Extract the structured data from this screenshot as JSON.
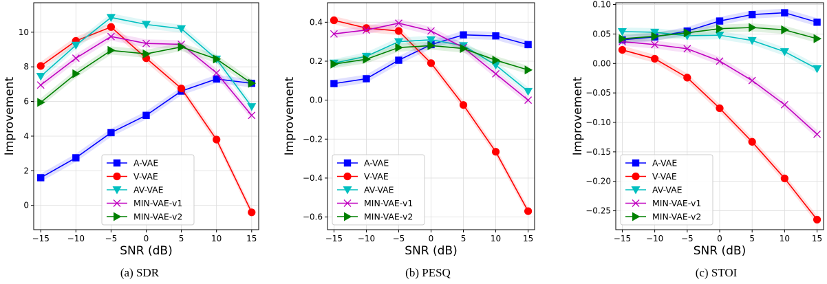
{
  "chart_data": [
    {
      "type": "line",
      "caption": "(a) SDR",
      "xlabel": "SNR (dB)",
      "ylabel": "Improvement",
      "x": [
        -15,
        -10,
        -5,
        0,
        5,
        10,
        15
      ],
      "xlim": [
        -16,
        16
      ],
      "ylim": [
        -1.4,
        11.7
      ],
      "xticks": [
        -15,
        -10,
        -5,
        0,
        5,
        10,
        15
      ],
      "yticks": [
        0,
        2,
        4,
        6,
        8,
        10
      ],
      "ytick_labels": [
        "0",
        "2",
        "4",
        "6",
        "8",
        "10"
      ],
      "grid": true,
      "legend_position": "lower-center",
      "series": [
        {
          "name": "A-VAE",
          "color": "#0000ff",
          "marker": "square",
          "values": [
            1.6,
            2.75,
            4.2,
            5.2,
            6.6,
            7.3,
            7.05
          ]
        },
        {
          "name": "V-VAE",
          "color": "#ff0000",
          "marker": "circle",
          "values": [
            8.05,
            9.5,
            10.3,
            8.5,
            6.75,
            3.8,
            -0.4
          ]
        },
        {
          "name": "AV-VAE",
          "color": "#00bfbf",
          "marker": "triangle-down",
          "values": [
            7.45,
            9.25,
            10.85,
            10.45,
            10.2,
            8.45,
            5.7
          ]
        },
        {
          "name": "MIN-VAE-v1",
          "color": "#bf00bf",
          "marker": "x",
          "values": [
            6.95,
            8.5,
            9.75,
            9.35,
            9.3,
            7.65,
            5.2
          ]
        },
        {
          "name": "MIN-VAE-v2",
          "color": "#008000",
          "marker": "triangle-right",
          "values": [
            5.95,
            7.6,
            8.95,
            8.75,
            9.15,
            8.45,
            7.05
          ]
        }
      ]
    },
    {
      "type": "line",
      "caption": "(b) PESQ",
      "xlabel": "SNR (dB)",
      "ylabel": "Improvement",
      "x": [
        -15,
        -10,
        -5,
        0,
        5,
        10,
        15
      ],
      "xlim": [
        -16,
        16
      ],
      "ylim": [
        -0.665,
        0.5
      ],
      "xticks": [
        -15,
        -10,
        -5,
        0,
        5,
        10,
        15
      ],
      "yticks": [
        -0.6,
        -0.4,
        -0.2,
        0.0,
        0.2,
        0.4
      ],
      "ytick_labels": [
        "−0.6",
        "−0.4",
        "−0.2",
        "0.0",
        "0.2",
        "0.4"
      ],
      "grid": true,
      "legend_position": "lower-left",
      "series": [
        {
          "name": "A-VAE",
          "color": "#0000ff",
          "marker": "square",
          "values": [
            0.085,
            0.11,
            0.205,
            0.285,
            0.335,
            0.33,
            0.285
          ]
        },
        {
          "name": "V-VAE",
          "color": "#ff0000",
          "marker": "circle",
          "values": [
            0.41,
            0.37,
            0.355,
            0.19,
            -0.025,
            -0.265,
            -0.57
          ]
        },
        {
          "name": "AV-VAE",
          "color": "#00bfbf",
          "marker": "triangle-down",
          "values": [
            0.19,
            0.225,
            0.3,
            0.31,
            0.28,
            0.18,
            0.045
          ]
        },
        {
          "name": "MIN-VAE-v1",
          "color": "#bf00bf",
          "marker": "x",
          "values": [
            0.34,
            0.36,
            0.395,
            0.355,
            0.27,
            0.135,
            0.0
          ]
        },
        {
          "name": "MIN-VAE-v2",
          "color": "#008000",
          "marker": "triangle-right",
          "values": [
            0.185,
            0.21,
            0.27,
            0.28,
            0.265,
            0.205,
            0.155
          ]
        }
      ]
    },
    {
      "type": "line",
      "caption": "(c) STOI",
      "xlabel": "SNR (dB)",
      "ylabel": "Improvement",
      "x": [
        -15,
        -10,
        -5,
        0,
        5,
        10,
        15
      ],
      "xlim": [
        -16,
        16
      ],
      "ylim": [
        -0.282,
        0.103
      ],
      "xticks": [
        -15,
        -10,
        -5,
        0,
        5,
        10,
        15
      ],
      "yticks": [
        -0.25,
        -0.2,
        -0.15,
        -0.1,
        -0.05,
        0.0,
        0.05,
        0.1
      ],
      "ytick_labels": [
        "−0.25",
        "−0.20",
        "−0.15",
        "−0.10",
        "−0.05",
        "0.00",
        "0.05",
        "0.10"
      ],
      "grid": true,
      "legend_position": "lower-left",
      "series": [
        {
          "name": "A-VAE",
          "color": "#0000ff",
          "marker": "square",
          "values": [
            0.04,
            0.045,
            0.055,
            0.072,
            0.083,
            0.086,
            0.07
          ]
        },
        {
          "name": "V-VAE",
          "color": "#ff0000",
          "marker": "circle",
          "values": [
            0.023,
            0.008,
            -0.024,
            -0.076,
            -0.133,
            -0.195,
            -0.265
          ]
        },
        {
          "name": "AV-VAE",
          "color": "#00bfbf",
          "marker": "triangle-down",
          "values": [
            0.054,
            0.053,
            0.047,
            0.048,
            0.039,
            0.02,
            -0.009
          ]
        },
        {
          "name": "MIN-VAE-v1",
          "color": "#bf00bf",
          "marker": "x",
          "values": [
            0.037,
            0.032,
            0.025,
            0.004,
            -0.029,
            -0.07,
            -0.12
          ]
        },
        {
          "name": "MIN-VAE-v2",
          "color": "#008000",
          "marker": "triangle-right",
          "values": [
            0.042,
            0.046,
            0.052,
            0.059,
            0.061,
            0.057,
            0.042
          ]
        }
      ]
    }
  ]
}
